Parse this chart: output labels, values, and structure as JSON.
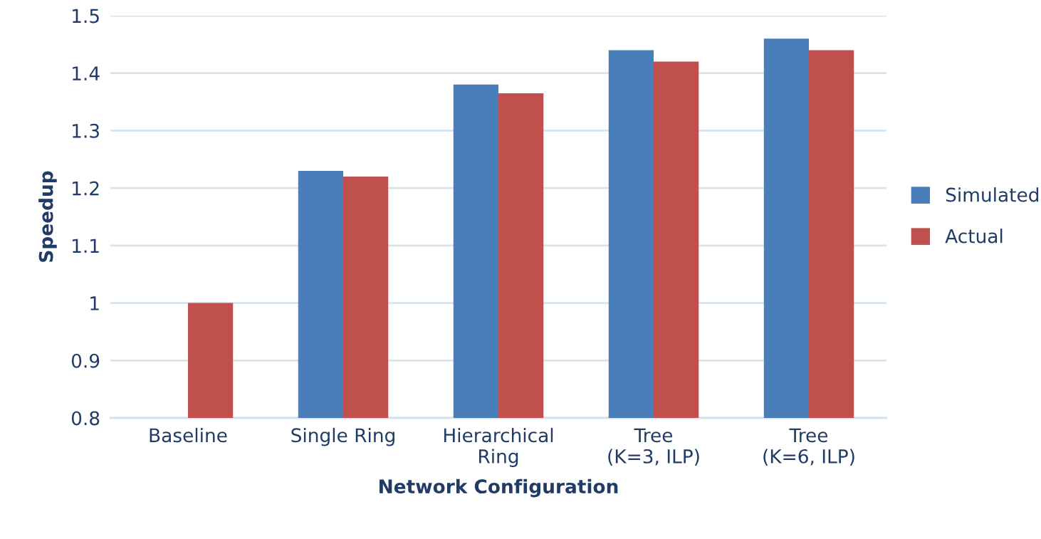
{
  "chart_data": {
    "type": "bar",
    "xlabel": "Network Configuration",
    "ylabel": "Speedup",
    "categories": [
      "Baseline",
      "Single Ring",
      "Hierarchical\nRing",
      "Tree\n(K=3, ILP)",
      "Tree\n(K=6, ILP)"
    ],
    "series": [
      {
        "name": "Simulated",
        "color": "#4a7ebb",
        "values": [
          null,
          1.23,
          1.38,
          1.44,
          1.46
        ]
      },
      {
        "name": "Actual",
        "color": "#c0504d",
        "values": [
          1.0,
          1.22,
          1.365,
          1.42,
          1.44
        ]
      }
    ],
    "ylim": [
      0.8,
      1.5
    ],
    "yticks": [
      0.8,
      0.9,
      {
        "value": 1.0,
        "label": "1"
      },
      1.1,
      1.2,
      1.3,
      1.4,
      1.5
    ],
    "grid": "y",
    "legend": "right"
  }
}
